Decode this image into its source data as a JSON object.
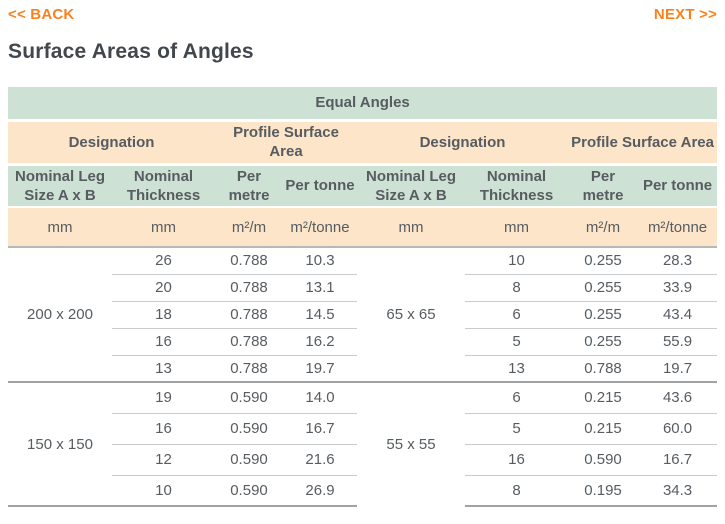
{
  "nav": {
    "back_label": "<< BACK",
    "next_label": "NEXT >>"
  },
  "page": {
    "title": "Surface Areas of Angles"
  },
  "table": {
    "title": "Equal Angles",
    "group_headers": {
      "designation": "Designation",
      "profile_surface_area": "Profile Surface Area"
    },
    "column_headers": {
      "leg_size": "Nominal Leg Size A x B",
      "thickness": "Nominal Thickness",
      "per_metre": "Per metre",
      "per_tonne": "Per tonne"
    },
    "units": {
      "mm": "mm",
      "m2_per_m": "m²/m",
      "m2_per_tonne": "m²/tonne"
    },
    "left_groups": [
      {
        "designation": "200 x 200",
        "rows": [
          [
            "26",
            "0.788",
            "10.3"
          ],
          [
            "20",
            "0.788",
            "13.1"
          ],
          [
            "18",
            "0.788",
            "14.5"
          ],
          [
            "16",
            "0.788",
            "16.2"
          ],
          [
            "13",
            "0.788",
            "19.7"
          ]
        ]
      },
      {
        "designation": "150 x 150",
        "rows": [
          [
            "19",
            "0.590",
            "14.0"
          ],
          [
            "16",
            "0.590",
            "16.7"
          ],
          [
            "12",
            "0.590",
            "21.6"
          ],
          [
            "10",
            "0.590",
            "26.9"
          ]
        ]
      }
    ],
    "right_groups": [
      {
        "designation": "65 x 65",
        "rows": [
          [
            "10",
            "0.255",
            "28.3"
          ],
          [
            "8",
            "0.255",
            "33.9"
          ],
          [
            "6",
            "0.255",
            "43.4"
          ],
          [
            "5",
            "0.255",
            "55.9"
          ],
          [
            "13",
            "0.788",
            "19.7"
          ]
        ]
      },
      {
        "designation": "55 x 55",
        "designation_continues": true,
        "rows": [
          [
            "6",
            "0.215",
            "43.6"
          ],
          [
            "5",
            "0.215",
            "60.0"
          ],
          [
            "16",
            "0.590",
            "16.7"
          ],
          [
            "8",
            "0.195",
            "34.3"
          ]
        ]
      }
    ],
    "colors": {
      "header_green": "#cde2d4",
      "header_peach": "#fce5c9",
      "link_orange": "#f8821e",
      "text_gray": "#575c61",
      "title_gray": "#41474c",
      "row_separator": "#c9cbcc",
      "group_separator": "#a0a2a3"
    }
  }
}
